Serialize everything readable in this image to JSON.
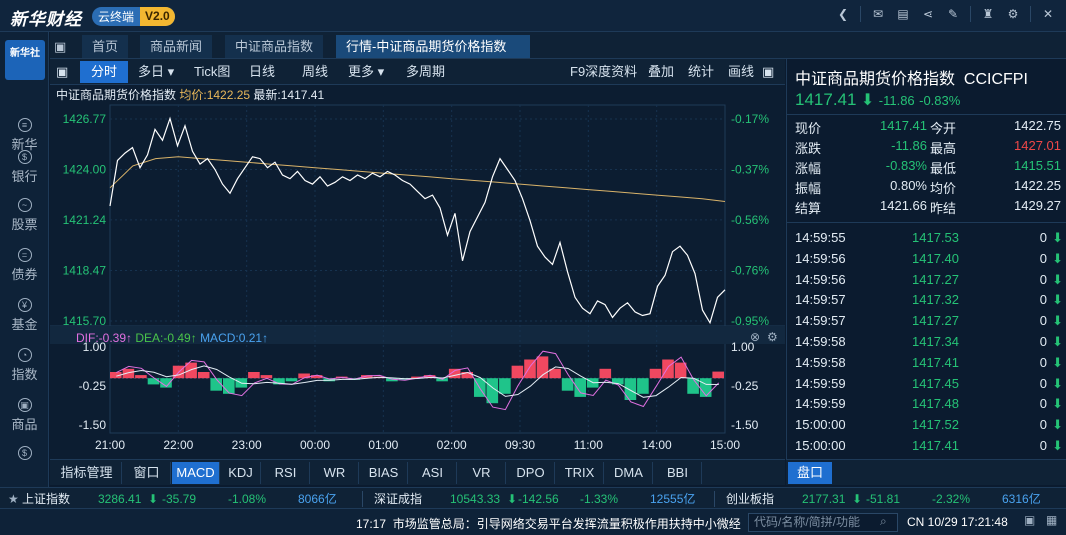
{
  "app": {
    "logo": "新华财经",
    "product": "云终端",
    "version": "V2.0"
  },
  "nav": {
    "logo_text": "新华社",
    "items": [
      {
        "label": "新华"
      },
      {
        "label": "银行"
      },
      {
        "label": "股票"
      },
      {
        "label": "债券"
      },
      {
        "label": "基金"
      },
      {
        "label": "指数"
      },
      {
        "label": "商品"
      },
      {
        "label": "外汇"
      }
    ]
  },
  "tabs": [
    {
      "label": "首页"
    },
    {
      "label": "商品新闻"
    },
    {
      "label": "中证商品指数"
    },
    {
      "label": "行情-中证商品期货价格指数"
    }
  ],
  "toolbar": {
    "left": [
      "分时",
      "多日",
      "Tick图",
      "日线",
      "周线",
      "更多",
      "多周期"
    ],
    "right": [
      "F9深度资料",
      "叠加",
      "统计",
      "画线"
    ]
  },
  "chart_title": {
    "name": "中证商品期货价格指数",
    "avg_label": "均价:1422.25",
    "latest_label": "最新:1417.41"
  },
  "macd_label": {
    "dif": "DIF:-0.39↑",
    "dea": "DEA:-0.49↑",
    "macd": "MACD:0.21↑"
  },
  "chart_data": [
    {
      "type": "line",
      "x_ticks": [
        "21:00",
        "22:00",
        "23:00",
        "00:00",
        "01:00",
        "02:00",
        "09:30",
        "11:00",
        "14:00",
        "15:00"
      ],
      "y_ticks": [
        "1426.77",
        "1424.00",
        "1421.24",
        "1418.47",
        "1415.70"
      ],
      "y_ticks_right": [
        "-0.17%",
        "-0.37%",
        "-0.56%",
        "-0.76%",
        "-0.95%"
      ],
      "ylim": [
        1415.7,
        1426.77
      ],
      "series": [
        {
          "role": "price",
          "color": "#ffffff",
          "values": [
            1422.0,
            1424.5,
            1424.9,
            1425.2,
            1424.1,
            1424.8,
            1426.2,
            1425.6,
            1426.8,
            1425.3,
            1426.4,
            1425.0,
            1424.3,
            1424.6,
            1424.0,
            1423.2,
            1422.7,
            1423.5,
            1424.1,
            1424.7,
            1424.6,
            1424.1,
            1424.4,
            1423.7,
            1423.5,
            1423.9,
            1423.4,
            1423.2,
            1423.6,
            1423.1,
            1423.3,
            1423.6,
            1423.4,
            1423.7,
            1423.5,
            1423.8,
            1423.6,
            1423.9,
            1423.7,
            1423.4,
            1423.2,
            1422.8,
            1422.4,
            1422.6,
            1421.9,
            1420.4,
            1421.6,
            1419.0,
            1420.6,
            1421.4,
            1422.2,
            1423.6,
            1424.6,
            1424.0,
            1423.4,
            1422.4,
            1421.2,
            1419.8,
            1419.2,
            1418.8,
            1420.0,
            1418.4,
            1417.0,
            1416.4,
            1416.1,
            1416.8,
            1416.6,
            1415.9,
            1416.4,
            1416.7,
            1416.2,
            1416.0,
            1416.1,
            1417.6,
            1418.2,
            1419.5,
            1419.8,
            1419.3,
            1418.3,
            1416.3,
            1415.6,
            1417.0,
            1417.41
          ]
        },
        {
          "role": "average",
          "color": "#d9b36a",
          "values": [
            1423.0,
            1424.2,
            1424.6,
            1424.7,
            1424.6,
            1424.5,
            1424.4,
            1424.3,
            1424.2,
            1424.1,
            1424.0,
            1423.9,
            1423.8,
            1423.7,
            1423.6,
            1423.5,
            1423.4,
            1423.3,
            1423.2,
            1423.1,
            1423.0,
            1422.9,
            1422.8,
            1422.7,
            1422.6,
            1422.5,
            1422.4,
            1422.25
          ]
        }
      ]
    },
    {
      "type": "bar",
      "title": "MACD",
      "y_ticks": [
        "1.00",
        "-0.25",
        "-1.50"
      ],
      "ylim": [
        -1.5,
        1.0
      ],
      "x_ticks": [
        "21:00",
        "22:00",
        "23:00",
        "00:00",
        "01:00",
        "02:00",
        "09:30",
        "11:00",
        "14:00",
        "15:00"
      ],
      "values": [
        0.2,
        0.3,
        0.1,
        -0.2,
        -0.3,
        0.4,
        0.5,
        0.2,
        -0.4,
        -0.5,
        -0.3,
        0.2,
        0.1,
        -0.2,
        -0.1,
        0.15,
        0.1,
        -0.1,
        0.05,
        -0.05,
        0.1,
        0.05,
        -0.1,
        -0.05,
        0.05,
        0.1,
        -0.1,
        0.3,
        0.2,
        -0.6,
        -0.8,
        -0.5,
        0.4,
        0.6,
        0.7,
        0.3,
        -0.4,
        -0.6,
        -0.3,
        0.3,
        -0.2,
        -0.7,
        -0.5,
        0.3,
        0.6,
        0.5,
        -0.5,
        -0.6,
        0.21
      ]
    }
  ],
  "right_panel": {
    "name": "中证商品期货价格指数",
    "code": "CCICFPI",
    "price": "1417.41",
    "change": "-11.86",
    "pct": "-0.83%",
    "quotes": [
      {
        "l1": "现价",
        "v1": "1417.41",
        "l2": "今开",
        "v2": "1422.75",
        "c1": "green",
        "c2": "white"
      },
      {
        "l1": "涨跌",
        "v1": "-11.86",
        "l2": "最高",
        "v2": "1427.01",
        "c1": "green",
        "c2": "red"
      },
      {
        "l1": "涨幅",
        "v1": "-0.83%",
        "l2": "最低",
        "v2": "1415.51",
        "c1": "green",
        "c2": "green"
      },
      {
        "l1": "振幅",
        "v1": "0.80%",
        "l2": "均价",
        "v2": "1422.25",
        "c1": "white",
        "c2": "white"
      },
      {
        "l1": "结算",
        "v1": "1421.66",
        "l2": "昨结",
        "v2": "1429.27",
        "c1": "white",
        "c2": "white"
      }
    ],
    "ticks": [
      {
        "time": "14:59:55",
        "price": "1417.53",
        "vol": "0"
      },
      {
        "time": "14:59:56",
        "price": "1417.40",
        "vol": "0"
      },
      {
        "time": "14:59:56",
        "price": "1417.27",
        "vol": "0"
      },
      {
        "time": "14:59:57",
        "price": "1417.32",
        "vol": "0"
      },
      {
        "time": "14:59:57",
        "price": "1417.27",
        "vol": "0"
      },
      {
        "time": "14:59:58",
        "price": "1417.34",
        "vol": "0"
      },
      {
        "time": "14:59:58",
        "price": "1417.41",
        "vol": "0"
      },
      {
        "time": "14:59:59",
        "price": "1417.45",
        "vol": "0"
      },
      {
        "time": "14:59:59",
        "price": "1417.48",
        "vol": "0"
      },
      {
        "time": "15:00:00",
        "price": "1417.52",
        "vol": "0"
      },
      {
        "time": "15:00:00",
        "price": "1417.41",
        "vol": "0"
      }
    ],
    "tab": "盘口"
  },
  "indicator_tabs": [
    "指标管理",
    "窗口",
    "MACD",
    "KDJ",
    "RSI",
    "WR",
    "BIAS",
    "ASI",
    "VR",
    "DPO",
    "TRIX",
    "DMA",
    "BBI"
  ],
  "index_bar": [
    {
      "name": "上证指数",
      "value": "3286.41",
      "change": "-35.79",
      "pct": "-1.08%",
      "amount": "8066亿"
    },
    {
      "name": "深证成指",
      "value": "10543.33",
      "change": "-142.56",
      "pct": "-1.33%",
      "amount": "12555亿"
    },
    {
      "name": "创业板指",
      "value": "2177.31",
      "change": "-51.81",
      "pct": "-2.32%",
      "amount": "6316亿"
    }
  ],
  "status": {
    "news_time": "17:17",
    "news": "市场监管总局：引导网络交易平台发挥流量积极作用扶持中小微经",
    "search_placeholder": "代码/名称/简拼/功能",
    "clock": "CN 10/29 17:21:48"
  }
}
